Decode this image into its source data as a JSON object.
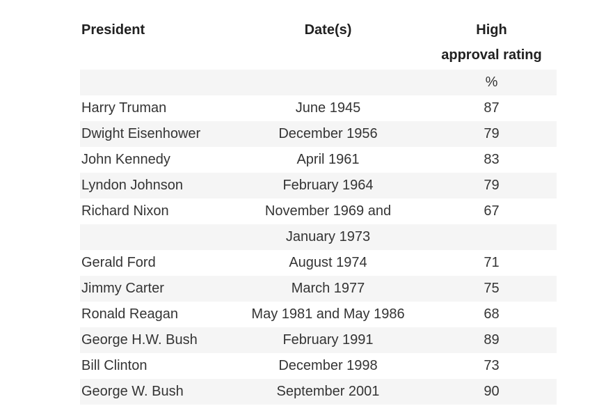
{
  "table": {
    "headers": {
      "president": "President",
      "dates": "Date(s)",
      "rating_line1": "High",
      "rating_line2": "approval rating"
    },
    "rows": [
      {
        "president": "",
        "dates": "",
        "rating": "%"
      },
      {
        "president": "Harry Truman",
        "dates": "June 1945",
        "rating": "87"
      },
      {
        "president": "Dwight Eisenhower",
        "dates": "December 1956",
        "rating": "79"
      },
      {
        "president": "John Kennedy",
        "dates": "April 1961",
        "rating": "83"
      },
      {
        "president": "Lyndon Johnson",
        "dates": "February 1964",
        "rating": "79"
      },
      {
        "president": "Richard Nixon",
        "dates": "November 1969 and",
        "rating": "67"
      },
      {
        "president": "",
        "dates": "January 1973",
        "rating": ""
      },
      {
        "president": "Gerald Ford",
        "dates": "August 1974",
        "rating": "71"
      },
      {
        "president": "Jimmy Carter",
        "dates": "March 1977",
        "rating": "75"
      },
      {
        "president": "Ronald Reagan",
        "dates": "May 1981 and May 1986",
        "rating": "68"
      },
      {
        "president": "George H.W. Bush",
        "dates": "February 1991",
        "rating": "89"
      },
      {
        "president": "Bill Clinton",
        "dates": "December 1998",
        "rating": "73"
      },
      {
        "president": "George W. Bush",
        "dates": "September 2001",
        "rating": "90"
      }
    ],
    "colors": {
      "stripe": "#f5f5f5",
      "header_text": "#212121",
      "body_text": "#343434",
      "background": "#ffffff"
    }
  }
}
